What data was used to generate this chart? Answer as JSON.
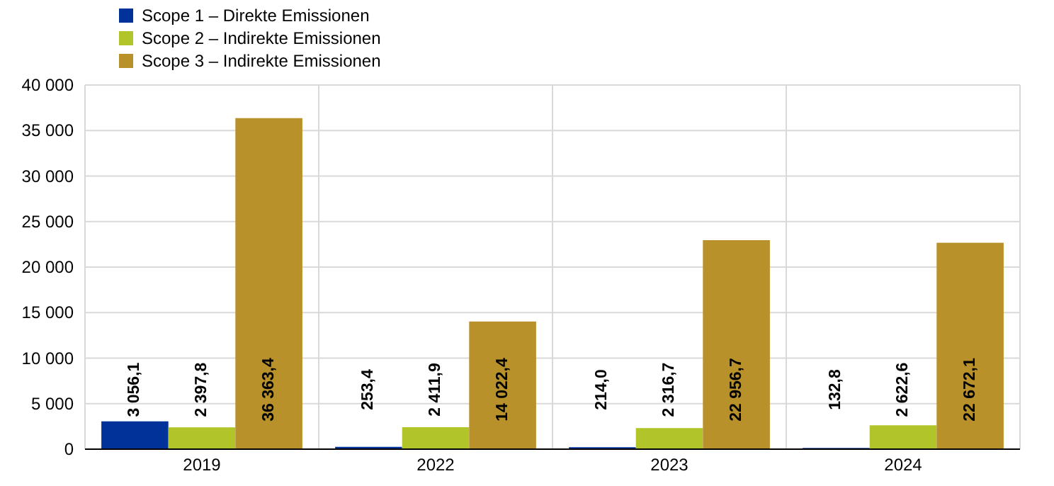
{
  "chart_data": {
    "type": "bar",
    "categories": [
      "2019",
      "2022",
      "2023",
      "2024"
    ],
    "series": [
      {
        "name": "Scope 1 – Direkte Emissionen",
        "color": "#003299",
        "values": [
          3056.1,
          253.4,
          214.0,
          132.8
        ],
        "value_labels": [
          "3 056,1",
          "253,4",
          "214,0",
          "132,8"
        ]
      },
      {
        "name": "Scope 2 – Indirekte Emissionen",
        "color": "#b1c52b",
        "values": [
          2397.8,
          2411.9,
          2316.7,
          2622.6
        ],
        "value_labels": [
          "2 397,8",
          "2 411,9",
          "2 316,7",
          "2 622,6"
        ]
      },
      {
        "name": "Scope 3 – Indirekte Emissionen",
        "color": "#b8912b",
        "values": [
          36363.4,
          14022.4,
          22956.7,
          22672.1
        ],
        "value_labels": [
          "36 363,4",
          "14 022,4",
          "22 956,7",
          "22 672,1"
        ]
      }
    ],
    "ylim": [
      0,
      40000
    ],
    "yticks": [
      {
        "value": 0,
        "label": "0"
      },
      {
        "value": 5000,
        "label": "5 000"
      },
      {
        "value": 10000,
        "label": "10 000"
      },
      {
        "value": 15000,
        "label": "15 000"
      },
      {
        "value": 20000,
        "label": "20 000"
      },
      {
        "value": 25000,
        "label": "25 000"
      },
      {
        "value": 30000,
        "label": "30 000"
      },
      {
        "value": 35000,
        "label": "35 000"
      },
      {
        "value": 40000,
        "label": "40 000"
      }
    ],
    "grid": true,
    "legend": "top left"
  }
}
